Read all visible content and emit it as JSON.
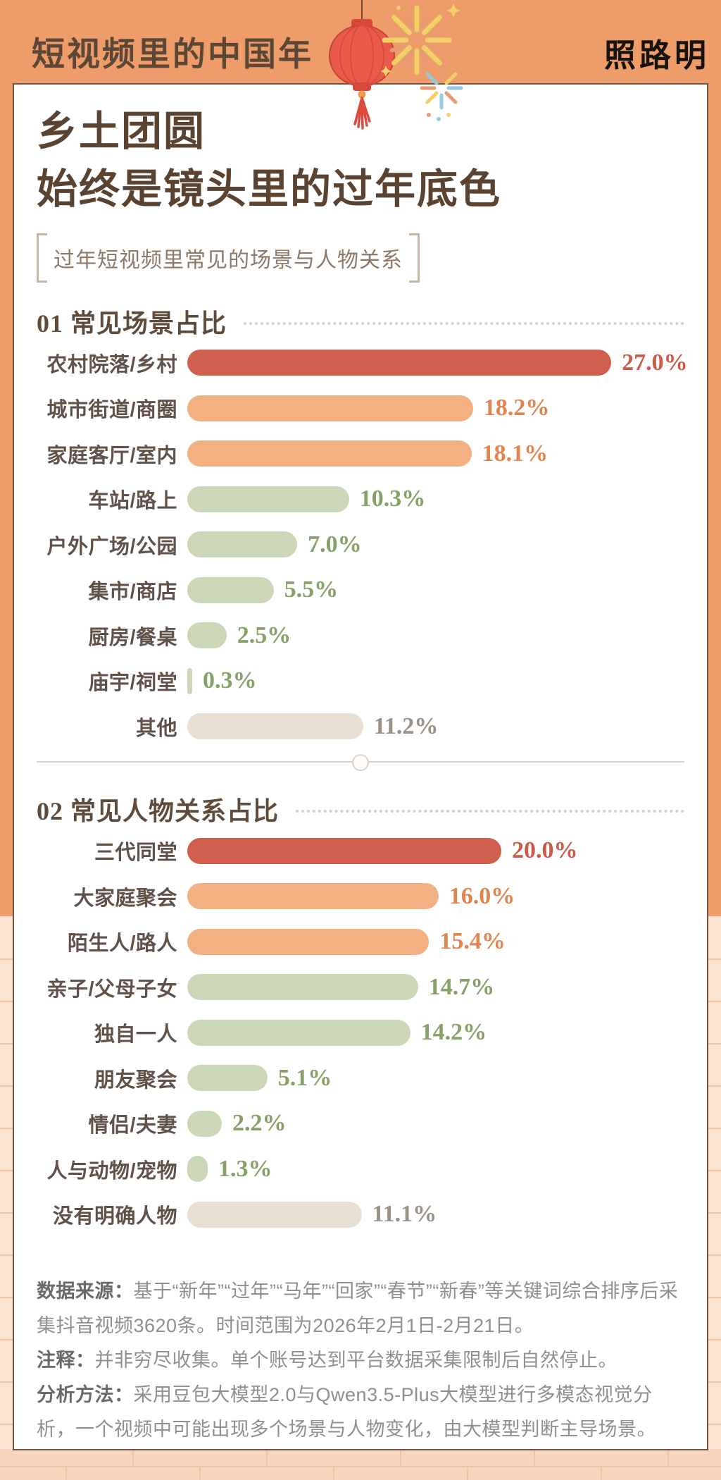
{
  "banner": {
    "title": "短视频里的中国年",
    "logo": "照路明"
  },
  "card": {
    "title_line1": "乡土团圆",
    "title_line2": "始终是镜头里的过年底色",
    "subtitle": "过年短视频里常见的场景与人物关系"
  },
  "palette": {
    "banner_bg": "#EF9C6B",
    "wall_bg": "#FBE3D0",
    "wall_line": "#EFC3A4",
    "card_bg": "#FFFFFF",
    "card_border": "#6C5646",
    "title_brown": "#5A4331",
    "label_brown": "#60514A",
    "bar_red": "#D15F4D",
    "bar_orange": "#F2B083",
    "bar_green": "#CBD7B7",
    "bar_beige": "#E8E0D2"
  },
  "chart_data": [
    {
      "type": "bar",
      "orientation": "horizontal",
      "title": "01 常见场景占比",
      "unit": "%",
      "xlim": [
        0,
        30
      ],
      "grid": false,
      "categories": [
        "农村院落/乡村",
        "城市街道/商圈",
        "家庭客厅/室内",
        "车站/路上",
        "户外广场/公园",
        "集市/商店",
        "厨房/餐桌",
        "庙宇/祠堂",
        "其他"
      ],
      "values": [
        27.0,
        18.2,
        18.1,
        10.3,
        7.0,
        5.5,
        2.5,
        0.3,
        11.2
      ],
      "bar_colors": [
        "#D15F4D",
        "#F2B083",
        "#F2B083",
        "#CBD7B7",
        "#CBD7B7",
        "#CBD7B7",
        "#CBD7B7",
        "#CBD7B7",
        "#E8E0D2"
      ],
      "value_colors": [
        "#CB5B49",
        "#E0854E",
        "#E0854E",
        "#85A167",
        "#85A167",
        "#85A167",
        "#85A167",
        "#85A167",
        "#9A9185"
      ]
    },
    {
      "type": "bar",
      "orientation": "horizontal",
      "title": "02 常见人物关系占比",
      "unit": "%",
      "xlim": [
        0,
        30
      ],
      "grid": false,
      "categories": [
        "三代同堂",
        "大家庭聚会",
        "陌生人/路人",
        "亲子/父母子女",
        "独自一人",
        "朋友聚会",
        "情侣/夫妻",
        "人与动物/宠物",
        "没有明确人物"
      ],
      "values": [
        20.0,
        16.0,
        15.4,
        14.7,
        14.2,
        5.1,
        2.2,
        1.3,
        11.1
      ],
      "bar_colors": [
        "#D15F4D",
        "#F2B083",
        "#F2B083",
        "#CBD7B7",
        "#CBD7B7",
        "#CBD7B7",
        "#CBD7B7",
        "#CBD7B7",
        "#E8E0D2"
      ],
      "value_colors": [
        "#CB5B49",
        "#E0854E",
        "#E0854E",
        "#85A167",
        "#85A167",
        "#85A167",
        "#85A167",
        "#85A167",
        "#9A9185"
      ]
    }
  ],
  "notes": [
    {
      "label": "数据来源：",
      "text": "基于“新年”“过年”“马年”“回家”“春节”“新春”等关键词综合排序后采集抖音视频3620条。时间范围为2026年2月1日-2月21日。"
    },
    {
      "label": "注释：",
      "text": "并非穷尽收集。单个账号达到平台数据采集限制后自然停止。"
    },
    {
      "label": "分析方法：",
      "text": "采用豆包大模型2.0与Qwen3.5-Plus大模型进行多模态视觉分析，一个视频中可能出现多个场景与人物变化，由大模型判断主导场景。"
    }
  ],
  "decorations": [
    "red-lantern",
    "gold-firework",
    "small-firework"
  ]
}
